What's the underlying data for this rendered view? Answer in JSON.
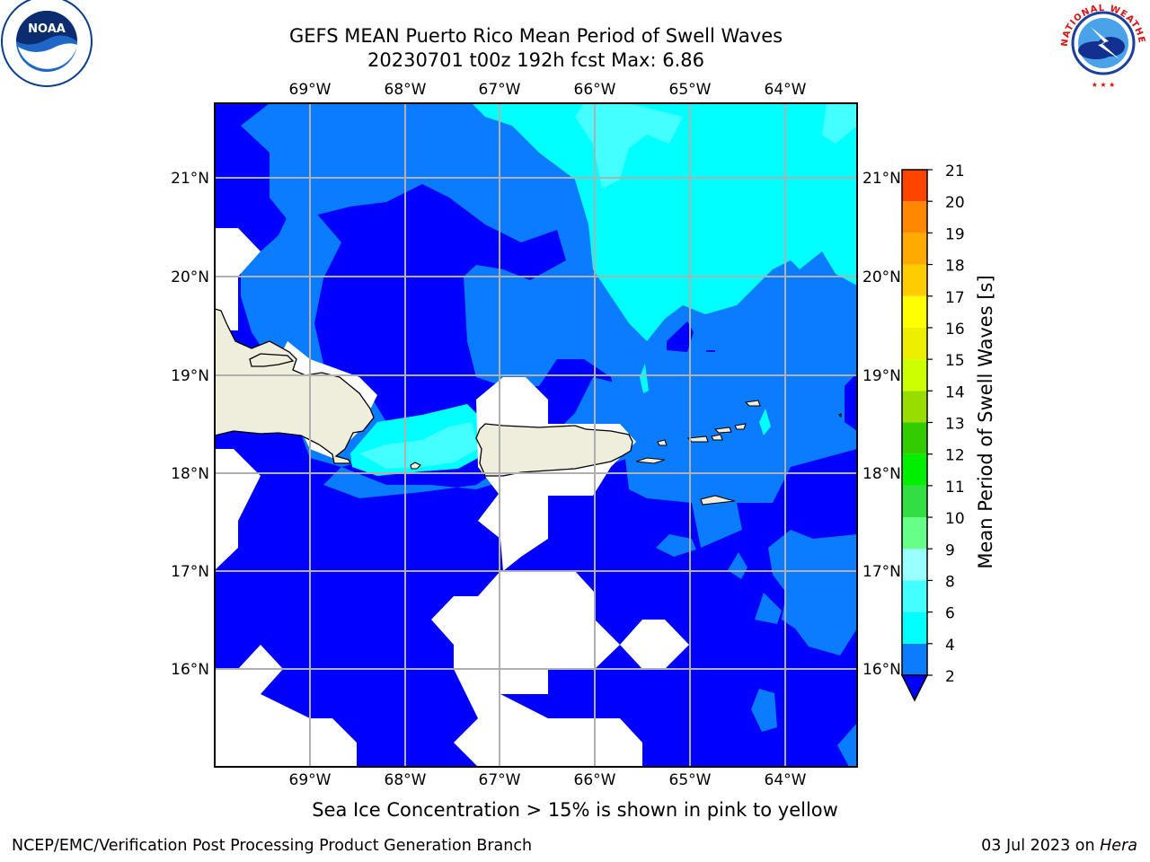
{
  "title": {
    "line1": "GEFS MEAN Puerto Rico Mean Period of Swell Waves",
    "line2": "20230701 t00z 192h fcst   Max: 6.86"
  },
  "map": {
    "lon_labels": [
      "69°W",
      "68°W",
      "67°W",
      "66°W",
      "65°W",
      "64°W"
    ],
    "lat_labels": [
      "21°N",
      "20°N",
      "19°N",
      "18°N",
      "17°N",
      "16°N"
    ],
    "colors": {
      "deep_blue": "#0000ff",
      "mid_blue": "#0a7cff",
      "cyan": "#00ffff",
      "light_cyan": "#44ffff",
      "land": "#efeddc",
      "grid": "#b0b0b0"
    }
  },
  "colorbar": {
    "label": "Mean Period of Swell Waves [s]",
    "ticks": [
      "2",
      "4",
      "6",
      "8",
      "9",
      "10",
      "11",
      "12",
      "13",
      "14",
      "15",
      "16",
      "17",
      "18",
      "19",
      "20",
      "21"
    ],
    "colors": [
      "#0a7cff",
      "#00ffff",
      "#44ffff",
      "#99ffff",
      "#66ff88",
      "#33dd44",
      "#00ee00",
      "#33cc00",
      "#99dd00",
      "#ccff00",
      "#eeee00",
      "#ffff00",
      "#ffcc00",
      "#ffaa00",
      "#ff8800",
      "#ff4400",
      "#ff0000"
    ],
    "extend_color": "#0000ff"
  },
  "footnote": "Sea Ice Concentration > 15% is shown in pink to yellow",
  "credits": {
    "left": "NCEP/EMC/Verification Post Processing Product Generation Branch",
    "right_date": "03 Jul 2023 on",
    "right_host": "Hera"
  },
  "logos": {
    "noaa_text": "NOAA",
    "nws_text": "NATIONAL WEATHER SERVICE"
  }
}
